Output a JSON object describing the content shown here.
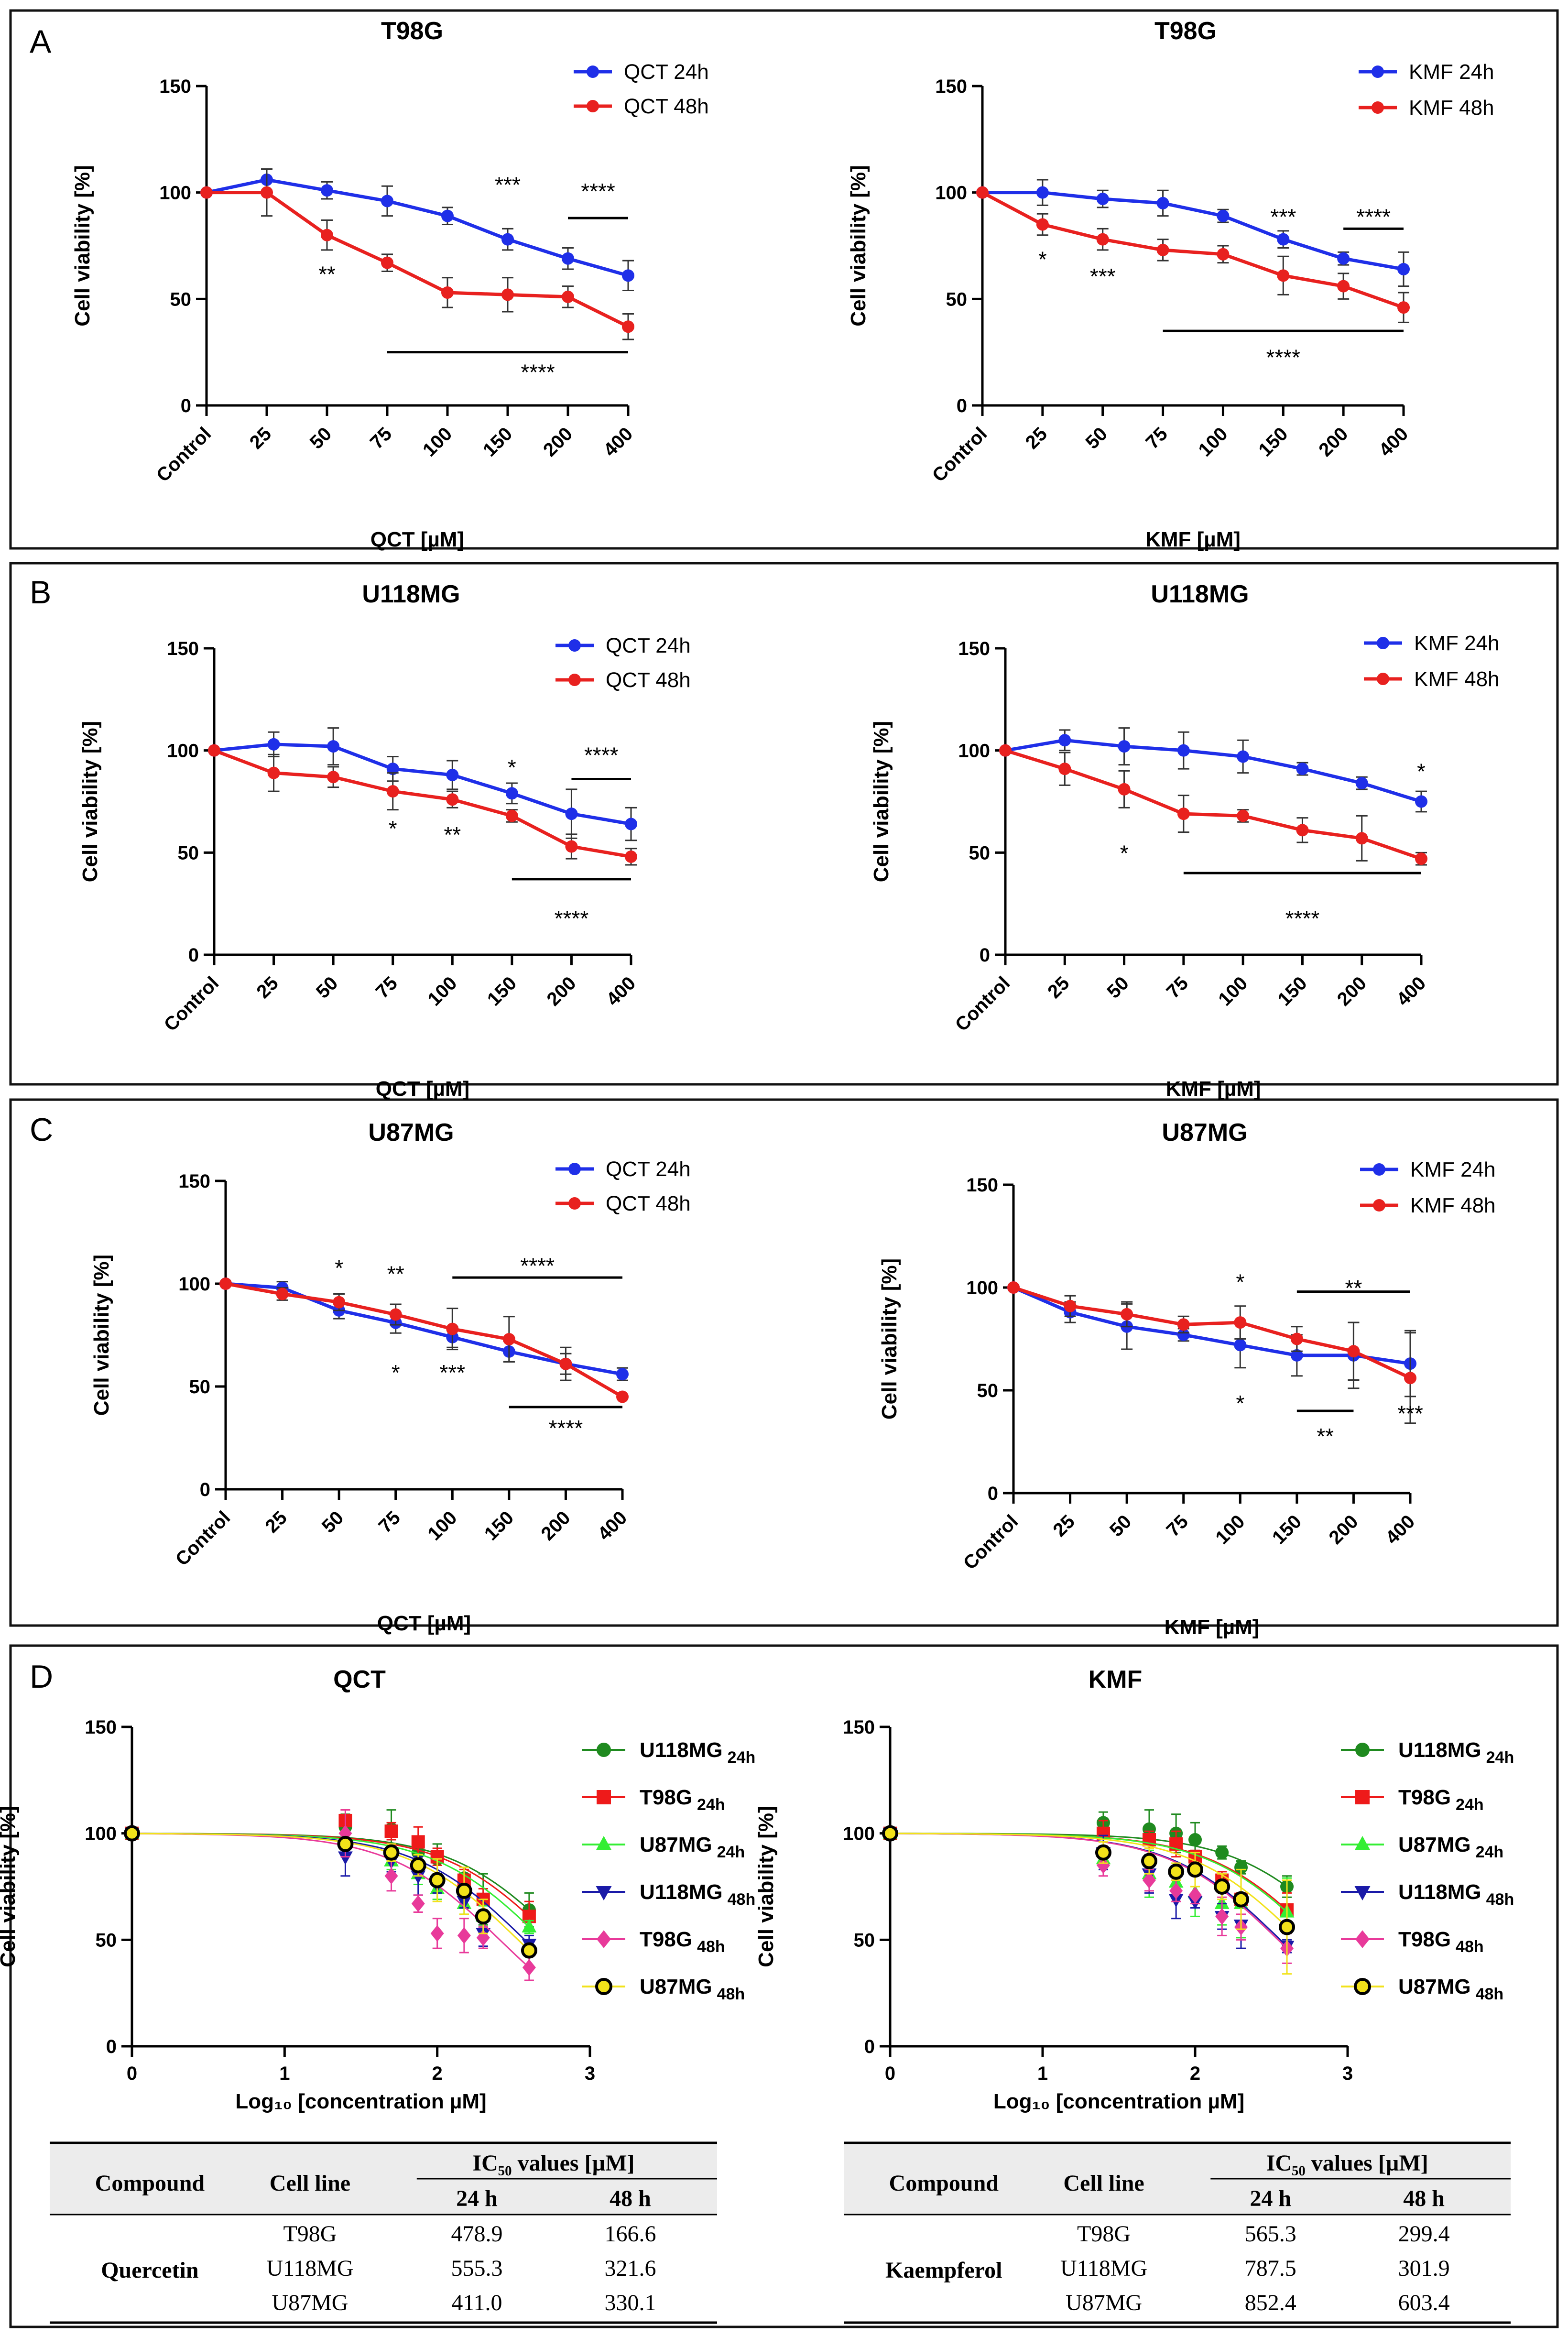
{
  "panel_letters": [
    "A",
    "B",
    "C",
    "D"
  ],
  "chart_data": [
    {
      "id": "A-QCT",
      "type": "line",
      "title": "T98G",
      "xlabel": "QCT [µM]",
      "ylabel": "Cell viability [%]",
      "ylim": [
        0,
        150
      ],
      "yticks": [
        0,
        50,
        100,
        150
      ],
      "categories": [
        "Control",
        "25",
        "50",
        "75",
        "100",
        "150",
        "200",
        "400"
      ],
      "series": [
        {
          "name": "QCT 24h",
          "color": "#1f2fe8",
          "values": [
            100,
            106,
            101,
            96,
            89,
            78,
            69,
            61
          ],
          "err": [
            2,
            5,
            4,
            7,
            4,
            5,
            5,
            7
          ]
        },
        {
          "name": "QCT 48h",
          "color": "#e8211f",
          "values": [
            100,
            100,
            80,
            67,
            53,
            52,
            51,
            37
          ],
          "err": [
            2,
            11,
            7,
            4,
            7,
            8,
            5,
            6
          ]
        }
      ],
      "annotations": [
        {
          "text": "**",
          "x": 2,
          "y": 58
        },
        {
          "text": "***",
          "x": 5,
          "y": 100
        },
        {
          "text": "****",
          "x": 6.5,
          "y": 97
        },
        {
          "text": "****",
          "x": 5.5,
          "y": 12
        }
      ],
      "sig_lines": [
        {
          "x1": 6,
          "x2": 7,
          "y": 88
        },
        {
          "x1": 3,
          "x2": 7,
          "y": 25
        }
      ]
    },
    {
      "id": "A-KMF",
      "type": "line",
      "title": "T98G",
      "xlabel": "KMF [µM]",
      "ylabel": "Cell viability [%]",
      "ylim": [
        0,
        150
      ],
      "yticks": [
        0,
        50,
        100,
        150
      ],
      "categories": [
        "Control",
        "25",
        "50",
        "75",
        "100",
        "150",
        "200",
        "400"
      ],
      "series": [
        {
          "name": "KMF 24h",
          "color": "#1f2fe8",
          "values": [
            100,
            100,
            97,
            95,
            89,
            78,
            69,
            64
          ],
          "err": [
            2,
            6,
            4,
            6,
            3,
            4,
            3,
            8
          ]
        },
        {
          "name": "KMF 48h",
          "color": "#e8211f",
          "values": [
            100,
            85,
            78,
            73,
            71,
            61,
            56,
            46
          ],
          "err": [
            2,
            5,
            5,
            5,
            4,
            9,
            6,
            7
          ]
        }
      ],
      "annotations": [
        {
          "text": "*",
          "x": 1,
          "y": 65
        },
        {
          "text": "***",
          "x": 2,
          "y": 57
        },
        {
          "text": "***",
          "x": 5,
          "y": 85
        },
        {
          "text": "****",
          "x": 6.5,
          "y": 85
        },
        {
          "text": "****",
          "x": 5,
          "y": 19
        }
      ],
      "sig_lines": [
        {
          "x1": 6,
          "x2": 7,
          "y": 83
        },
        {
          "x1": 3,
          "x2": 7,
          "y": 35
        }
      ]
    },
    {
      "id": "B-QCT",
      "type": "line",
      "title": "U118MG",
      "xlabel": "QCT [µM]",
      "ylabel": "Cell viability [%]",
      "ylim": [
        0,
        150
      ],
      "yticks": [
        0,
        50,
        100,
        150
      ],
      "categories": [
        "Control",
        "25",
        "50",
        "75",
        "100",
        "150",
        "200",
        "400"
      ],
      "series": [
        {
          "name": "QCT 24h",
          "color": "#1f2fe8",
          "values": [
            100,
            103,
            102,
            91,
            88,
            79,
            69,
            64
          ],
          "err": [
            2,
            6,
            9,
            6,
            7,
            5,
            12,
            8
          ]
        },
        {
          "name": "QCT 48h",
          "color": "#e8211f",
          "values": [
            100,
            89,
            87,
            80,
            76,
            68,
            53,
            48
          ],
          "err": [
            2,
            9,
            5,
            9,
            4,
            3,
            6,
            4
          ]
        }
      ],
      "annotations": [
        {
          "text": "*",
          "x": 3,
          "y": 58
        },
        {
          "text": "**",
          "x": 4,
          "y": 55
        },
        {
          "text": "*",
          "x": 5,
          "y": 88
        },
        {
          "text": "****",
          "x": 6.5,
          "y": 94
        },
        {
          "text": "****",
          "x": 6,
          "y": 14
        }
      ],
      "sig_lines": [
        {
          "x1": 6,
          "x2": 7,
          "y": 86
        },
        {
          "x1": 5,
          "x2": 7,
          "y": 37
        }
      ]
    },
    {
      "id": "B-KMF",
      "type": "line",
      "title": "U118MG",
      "xlabel": "KMF [µM]",
      "ylabel": "Cell viability [%]",
      "ylim": [
        0,
        150
      ],
      "yticks": [
        0,
        50,
        100,
        150
      ],
      "categories": [
        "Control",
        "25",
        "50",
        "75",
        "100",
        "150",
        "200",
        "400"
      ],
      "series": [
        {
          "name": "KMF 24h",
          "color": "#1f2fe8",
          "values": [
            100,
            105,
            102,
            100,
            97,
            91,
            84,
            75
          ],
          "err": [
            2,
            5,
            9,
            9,
            8,
            3,
            3,
            5
          ]
        },
        {
          "name": "KMF 48h",
          "color": "#e8211f",
          "values": [
            100,
            91,
            81,
            69,
            68,
            61,
            57,
            47
          ],
          "err": [
            2,
            8,
            9,
            9,
            3,
            6,
            11,
            3
          ]
        }
      ],
      "annotations": [
        {
          "text": "*",
          "x": 2,
          "y": 46
        },
        {
          "text": "*",
          "x": 7,
          "y": 86
        },
        {
          "text": "****",
          "x": 5,
          "y": 14
        }
      ],
      "sig_lines": [
        {
          "x1": 3,
          "x2": 7,
          "y": 40
        }
      ]
    },
    {
      "id": "C-QCT",
      "type": "line",
      "title": "U87MG",
      "xlabel": "QCT [µM]",
      "ylabel": "Cell viability [%]",
      "ylim": [
        0,
        150
      ],
      "yticks": [
        0,
        50,
        100,
        150
      ],
      "categories": [
        "Control",
        "25",
        "50",
        "75",
        "100",
        "150",
        "200",
        "400"
      ],
      "series": [
        {
          "name": "QCT 24h",
          "color": "#1f2fe8",
          "values": [
            100,
            98,
            87,
            81,
            74,
            67,
            61,
            56
          ],
          "err": [
            2,
            3,
            4,
            5,
            5,
            5,
            5,
            3
          ]
        },
        {
          "name": "QCT 48h",
          "color": "#e8211f",
          "values": [
            100,
            95,
            91,
            85,
            78,
            73,
            61,
            45
          ],
          "err": [
            2,
            3,
            4,
            5,
            10,
            11,
            8,
            2
          ]
        }
      ],
      "annotations": [
        {
          "text": "*",
          "x": 2,
          "y": 104
        },
        {
          "text": "**",
          "x": 3,
          "y": 101
        },
        {
          "text": "****",
          "x": 5.5,
          "y": 105
        },
        {
          "text": "*",
          "x": 3,
          "y": 53
        },
        {
          "text": "***",
          "x": 4,
          "y": 53
        },
        {
          "text": "****",
          "x": 6,
          "y": 26
        }
      ],
      "sig_lines": [
        {
          "x1": 4,
          "x2": 7,
          "y": 103
        },
        {
          "x1": 5,
          "x2": 7,
          "y": 40
        }
      ]
    },
    {
      "id": "C-KMF",
      "type": "line",
      "title": "U87MG",
      "xlabel": "KMF [µM]",
      "ylabel": "Cell viability [%]",
      "ylim": [
        0,
        150
      ],
      "yticks": [
        0,
        50,
        100,
        150
      ],
      "categories": [
        "Control",
        "25",
        "50",
        "75",
        "100",
        "150",
        "200",
        "400"
      ],
      "series": [
        {
          "name": "KMF 24h",
          "color": "#1f2fe8",
          "values": [
            100,
            88,
            81,
            77,
            72,
            67,
            67,
            63
          ],
          "err": [
            2,
            5,
            11,
            3,
            11,
            10,
            16,
            16
          ]
        },
        {
          "name": "KMF 48h",
          "color": "#e8211f",
          "values": [
            100,
            91,
            87,
            82,
            83,
            75,
            69,
            56
          ],
          "err": [
            2,
            5,
            6,
            4,
            8,
            6,
            14,
            22
          ]
        }
      ],
      "annotations": [
        {
          "text": "*",
          "x": 4,
          "y": 99
        },
        {
          "text": "**",
          "x": 6,
          "y": 96
        },
        {
          "text": "*",
          "x": 4,
          "y": 40
        },
        {
          "text": "**",
          "x": 5.5,
          "y": 24
        },
        {
          "text": "***",
          "x": 7,
          "y": 35
        }
      ],
      "sig_lines": [
        {
          "x1": 5,
          "x2": 7,
          "y": 98
        },
        {
          "x1": 5,
          "x2": 6,
          "y": 40
        }
      ]
    },
    {
      "id": "D-QCT",
      "type": "scatter",
      "title": "QCT",
      "xlabel": "Log₁₀ [concentration µM]",
      "ylabel": "Cell viability [%]",
      "xlim": [
        0,
        3
      ],
      "xticks": [
        0,
        1,
        2,
        3
      ],
      "ylim": [
        0,
        150
      ],
      "yticks": [
        0,
        50,
        100,
        150
      ],
      "x": [
        0,
        1.398,
        1.699,
        1.875,
        2.0,
        2.176,
        2.301,
        2.602
      ],
      "series": [
        {
          "name": "U118MG",
          "sub": "24h",
          "color": "#1f8a1f",
          "marker": "circle",
          "values": [
            100,
            103,
            102,
            91,
            88,
            79,
            69,
            64
          ],
          "err": [
            2,
            6,
            9,
            6,
            7,
            5,
            12,
            8
          ]
        },
        {
          "name": "T98G",
          "sub": "24h",
          "color": "#ee1a1a",
          "marker": "square",
          "values": [
            100,
            106,
            101,
            96,
            89,
            78,
            69,
            61
          ],
          "err": [
            2,
            5,
            4,
            7,
            4,
            5,
            5,
            7
          ]
        },
        {
          "name": "U87MG",
          "sub": "24h",
          "color": "#33ee33",
          "marker": "triangle-up",
          "values": [
            100,
            98,
            87,
            81,
            74,
            67,
            61,
            56
          ],
          "err": [
            2,
            3,
            4,
            5,
            5,
            5,
            5,
            3
          ]
        },
        {
          "name": "U118MG",
          "sub": "48h",
          "color": "#1a1aa8",
          "marker": "triangle-down",
          "values": [
            100,
            89,
            87,
            80,
            76,
            68,
            53,
            48
          ],
          "err": [
            2,
            9,
            5,
            9,
            4,
            3,
            6,
            4
          ]
        },
        {
          "name": "T98G",
          "sub": "48h",
          "color": "#e83a9a",
          "marker": "diamond",
          "values": [
            100,
            100,
            80,
            67,
            53,
            52,
            51,
            37
          ],
          "err": [
            2,
            11,
            7,
            4,
            7,
            8,
            5,
            6
          ]
        },
        {
          "name": "U87MG",
          "sub": "48h",
          "color": "#f2e21a",
          "marker": "circle-outline",
          "values": [
            100,
            95,
            91,
            85,
            78,
            73,
            61,
            45
          ],
          "err": [
            2,
            3,
            4,
            5,
            10,
            11,
            8,
            2
          ]
        }
      ]
    },
    {
      "id": "D-KMF",
      "type": "scatter",
      "title": "KMF",
      "xlabel": "Log₁₀ [concentration µM]",
      "ylabel": "Cell viability [%]",
      "xlim": [
        0,
        3
      ],
      "xticks": [
        0,
        1,
        2,
        3
      ],
      "ylim": [
        0,
        150
      ],
      "yticks": [
        0,
        50,
        100,
        150
      ],
      "x": [
        0,
        1.398,
        1.699,
        1.875,
        2.0,
        2.176,
        2.301,
        2.602
      ],
      "series": [
        {
          "name": "U118MG",
          "sub": "24h",
          "color": "#1f8a1f",
          "marker": "circle",
          "values": [
            100,
            105,
            102,
            100,
            97,
            91,
            84,
            75
          ],
          "err": [
            2,
            5,
            9,
            9,
            8,
            3,
            3,
            5
          ]
        },
        {
          "name": "T98G",
          "sub": "24h",
          "color": "#ee1a1a",
          "marker": "square",
          "values": [
            100,
            100,
            97,
            95,
            89,
            78,
            69,
            64
          ],
          "err": [
            2,
            6,
            4,
            6,
            3,
            4,
            3,
            8
          ]
        },
        {
          "name": "U87MG",
          "sub": "24h",
          "color": "#33ee33",
          "marker": "triangle-up",
          "values": [
            100,
            88,
            81,
            77,
            72,
            67,
            67,
            63
          ],
          "err": [
            2,
            5,
            11,
            3,
            11,
            10,
            16,
            16
          ]
        },
        {
          "name": "U118MG",
          "sub": "48h",
          "color": "#1a1aa8",
          "marker": "triangle-down",
          "values": [
            100,
            91,
            81,
            69,
            68,
            61,
            57,
            47
          ],
          "err": [
            2,
            8,
            9,
            9,
            3,
            6,
            11,
            3
          ]
        },
        {
          "name": "T98G",
          "sub": "48h",
          "color": "#e83a9a",
          "marker": "diamond",
          "values": [
            100,
            85,
            78,
            73,
            71,
            61,
            56,
            46
          ],
          "err": [
            2,
            5,
            5,
            5,
            4,
            9,
            6,
            7
          ]
        },
        {
          "name": "U87MG",
          "sub": "48h",
          "color": "#f2e21a",
          "marker": "circle-outline",
          "values": [
            100,
            91,
            87,
            82,
            83,
            75,
            69,
            56
          ],
          "err": [
            2,
            5,
            6,
            4,
            8,
            6,
            14,
            22
          ]
        }
      ]
    }
  ],
  "tables": [
    {
      "id": "table-qct",
      "headers": {
        "compound": "Compound",
        "cell_line": "Cell line",
        "ic50": "IC₅₀ values [µM]",
        "h24": "24 h",
        "h48": "48 h"
      },
      "compound": "Quercetin",
      "rows": [
        {
          "cell_line": "T98G",
          "h24": "478.9",
          "h48": "166.6"
        },
        {
          "cell_line": "U118MG",
          "h24": "555.3",
          "h48": "321.6"
        },
        {
          "cell_line": "U87MG",
          "h24": "411.0",
          "h48": "330.1"
        }
      ]
    },
    {
      "id": "table-kmf",
      "headers": {
        "compound": "Compound",
        "cell_line": "Cell line",
        "ic50": "IC₅₀ values [µM]",
        "h24": "24 h",
        "h48": "48 h"
      },
      "compound": "Kaempferol",
      "rows": [
        {
          "cell_line": "T98G",
          "h24": "565.3",
          "h48": "299.4"
        },
        {
          "cell_line": "U118MG",
          "h24": "787.5",
          "h48": "301.9"
        },
        {
          "cell_line": "U87MG",
          "h24": "852.4",
          "h48": "603.4"
        }
      ]
    }
  ]
}
